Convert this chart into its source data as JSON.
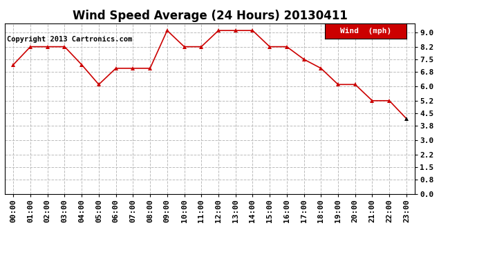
{
  "title": "Wind Speed Average (24 Hours) 20130411",
  "copyright": "Copyright 2013 Cartronics.com",
  "legend_label": "Wind  (mph)",
  "x_labels": [
    "00:00",
    "01:00",
    "02:00",
    "03:00",
    "04:00",
    "05:00",
    "06:00",
    "07:00",
    "08:00",
    "09:00",
    "10:00",
    "11:00",
    "12:00",
    "13:00",
    "14:00",
    "15:00",
    "16:00",
    "17:00",
    "18:00",
    "19:00",
    "20:00",
    "21:00",
    "22:00",
    "23:00"
  ],
  "y_values": [
    7.2,
    8.2,
    8.2,
    8.2,
    7.2,
    6.1,
    7.0,
    7.0,
    7.0,
    9.1,
    8.2,
    8.2,
    9.1,
    9.1,
    9.1,
    8.2,
    8.2,
    7.5,
    7.0,
    6.1,
    6.1,
    5.2,
    5.2,
    4.2
  ],
  "line_color": "#cc0000",
  "marker_color_red": "#cc0000",
  "marker_color_black": "#000000",
  "legend_bg": "#cc0000",
  "legend_text_color": "#ffffff",
  "bg_color": "#ffffff",
  "grid_color": "#bbbbbb",
  "yticks": [
    0.0,
    0.8,
    1.5,
    2.2,
    3.0,
    3.8,
    4.5,
    5.2,
    6.0,
    6.8,
    7.5,
    8.2,
    9.0
  ],
  "ylim": [
    0.0,
    9.5
  ],
  "title_fontsize": 12,
  "axis_fontsize": 8,
  "copyright_fontsize": 7.5,
  "legend_fontsize": 8
}
